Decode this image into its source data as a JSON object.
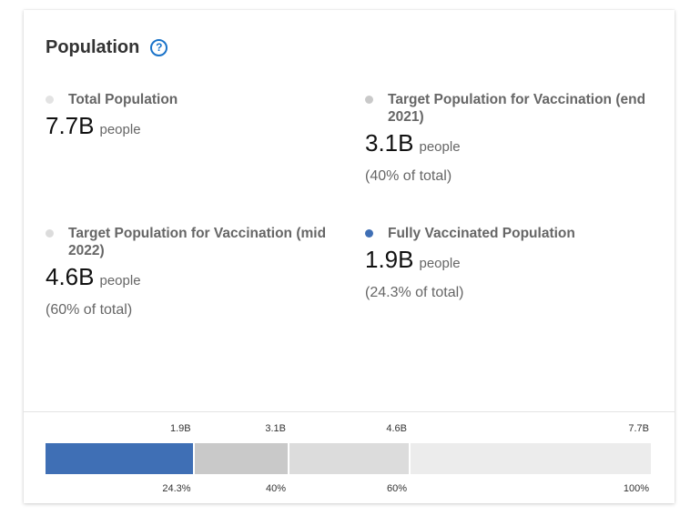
{
  "title": "Population",
  "help_icon": "?",
  "stats": [
    {
      "label": "Total Population",
      "value": "7.7B",
      "unit": "people",
      "pct": "",
      "dot_color": "#e3e3e3"
    },
    {
      "label": "Target Population for Vaccination (end 2021)",
      "value": "3.1B",
      "unit": "people",
      "pct": "(40% of total)",
      "dot_color": "#c9c9c9"
    },
    {
      "label": "Target Population for Vaccination (mid 2022)",
      "value": "4.6B",
      "unit": "people",
      "pct": "(60% of total)",
      "dot_color": "#dcdcdc"
    },
    {
      "label": "Fully Vaccinated Population",
      "value": "1.9B",
      "unit": "people",
      "pct": "(24.3% of total)",
      "dot_color": "#3f6fb5"
    }
  ],
  "bar": {
    "segments": [
      {
        "name": "fully-vaccinated",
        "fraction": 0.243,
        "color": "#3f6fb5",
        "top_label": "1.9B",
        "bottom_label": "24.3%"
      },
      {
        "name": "target-end-2021",
        "fraction": 0.4,
        "color": "#c9c9c9",
        "top_label": "3.1B",
        "bottom_label": "40%"
      },
      {
        "name": "target-mid-2022",
        "fraction": 0.6,
        "color": "#dcdcdc",
        "top_label": "4.6B",
        "bottom_label": "60%"
      },
      {
        "name": "total-population",
        "fraction": 1.0,
        "color": "#ececec",
        "top_label": "7.7B",
        "bottom_label": "100%"
      }
    ]
  }
}
